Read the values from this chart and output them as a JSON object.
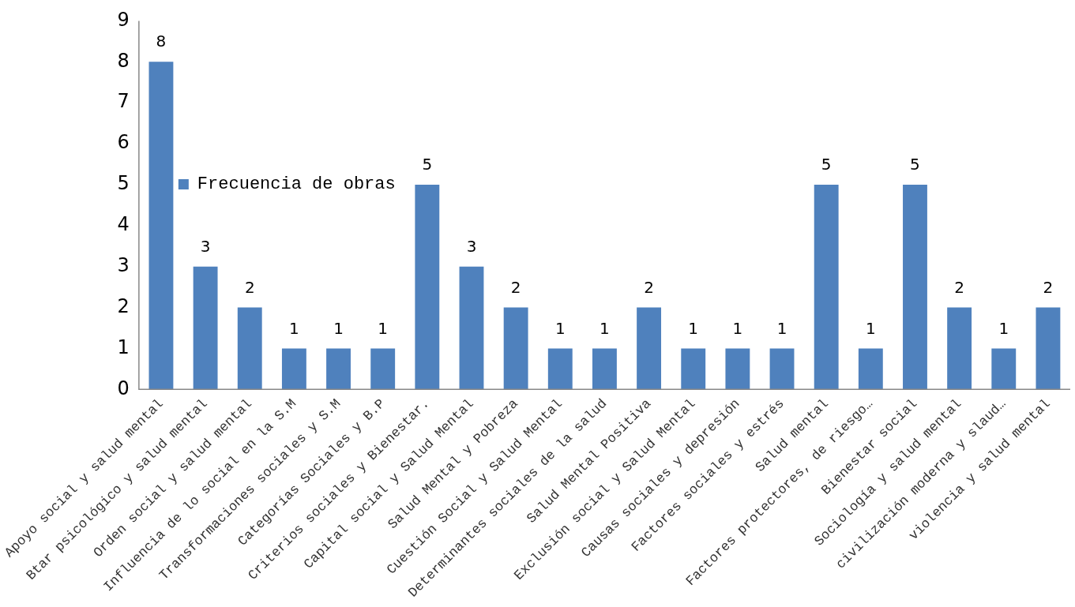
{
  "chart_data": {
    "type": "bar",
    "categories": [
      "Apoyo social y salud mental",
      "Btar psicológico y salud mental",
      "Orden social y salud mental",
      "Influencia de lo social en la S.M",
      "Transformaciones sociales y S.M",
      "Categorías Sociales y B.P",
      "Criterios sociales y Bienestar.",
      "Capital social y Salud Mental",
      "Salud Mental y Pobreza",
      "Cuestión Social y Salud Mental",
      "Determinantes sociales de la salud",
      "Salud Mental Positiva",
      "Exclusión social y Salud Mental",
      "Causas sociales y depresión",
      "Factores sociales y estrés",
      "Salud mental",
      "Factores protectores, de riesgo…",
      "Bienestar social",
      "Sociología y salud mental",
      "civilización moderna y slaud…",
      "violencia y salud mental"
    ],
    "series": [
      {
        "name": "Frecuencia de obras",
        "color": "#4f81bd",
        "values": [
          8,
          3,
          2,
          1,
          1,
          1,
          5,
          3,
          2,
          1,
          1,
          2,
          1,
          1,
          1,
          5,
          1,
          5,
          2,
          1,
          2
        ]
      }
    ],
    "ylim": [
      0,
      9
    ],
    "yticks": [
      0,
      1,
      2,
      3,
      4,
      5,
      6,
      7,
      8,
      9
    ],
    "data_labels": true,
    "grid": false,
    "legend": "top"
  }
}
